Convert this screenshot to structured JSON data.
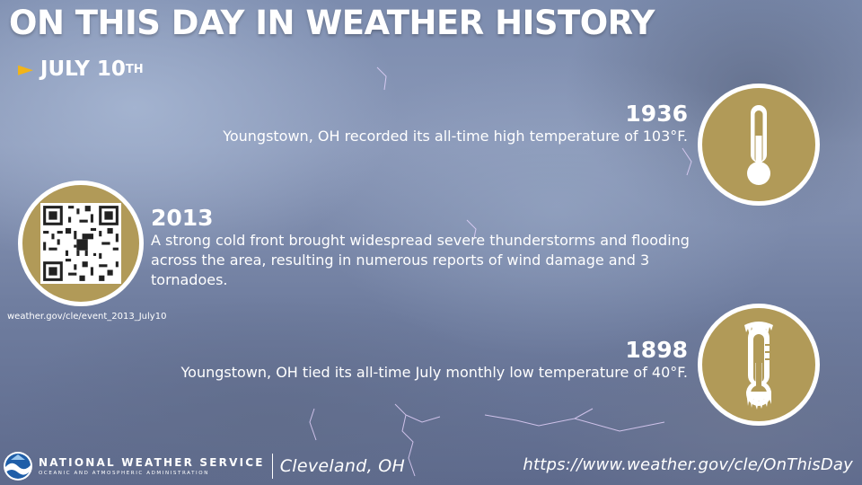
{
  "header": {
    "title": "ON THIS DAY IN WEATHER HISTORY",
    "date_arrow": "►",
    "date_main": "JULY 10",
    "date_suffix": "TH"
  },
  "events": [
    {
      "year": "1936",
      "description": "Youngstown, OH recorded its all-time high temperature of 103°F.",
      "icon": "thermometer-hot-icon"
    },
    {
      "year": "2013",
      "description": "A strong cold front brought widespread severe thunderstorms and flooding across the area, resulting in numerous reports of wind damage and 3 tornadoes.",
      "link": "weather.gov/cle/event_2013_July10",
      "icon": "qr-code-icon"
    },
    {
      "year": "1898",
      "description": "Youngstown, OH tied its all-time July monthly low temperature of 40°F.",
      "icon": "thermometer-frozen-icon"
    }
  ],
  "footer": {
    "agency": "NATIONAL WEATHER SERVICE",
    "agency_sub": "OCEANIC AND ATMOSPHERIC ADMINISTRATION",
    "office": "Cleveland, OH",
    "url": "https://www.weather.gov/cle/OnThisDay"
  },
  "colors": {
    "badge": "#b19a58",
    "accent": "#f2b418",
    "text": "#ffffff"
  }
}
